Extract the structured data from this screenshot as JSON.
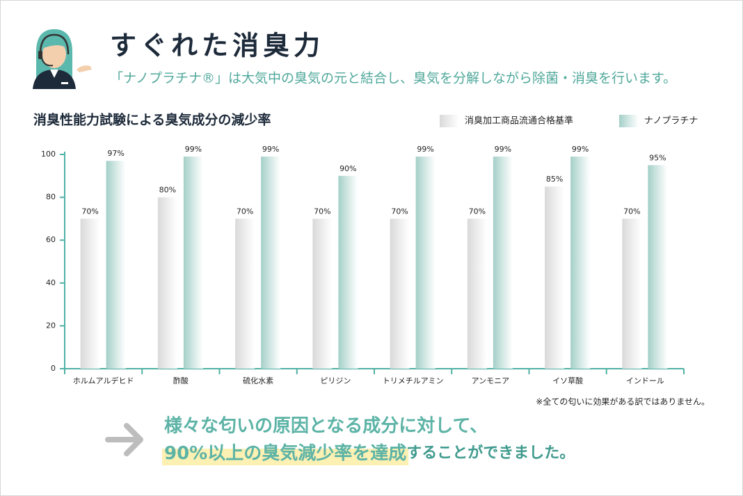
{
  "header": {
    "title": "すぐれた消臭力",
    "subtitle": "「ナノプラチナ®」は大気中の臭気の元と結合し、臭気を分解しながら除菌・消臭を行います。"
  },
  "chart_data": {
    "type": "bar",
    "title": "消臭性能力試験による臭気成分の減少率",
    "categories": [
      "ホルムアルデヒド",
      "酢酸",
      "硫化水素",
      "ピリジン",
      "トリメチルアミン",
      "アンモニア",
      "イソ草酸",
      "インドール"
    ],
    "series": [
      {
        "name": "消臭加工商品流通合格基準",
        "color": "#d9d9d9",
        "values": [
          70,
          80,
          70,
          70,
          70,
          70,
          85,
          70
        ],
        "value_labels": [
          "70%",
          "80%",
          "70%",
          "70%",
          "70%",
          "70%",
          "85%",
          "70%"
        ]
      },
      {
        "name": "ナノプラチナ",
        "color": "#a3cfc7",
        "values": [
          97,
          99,
          99,
          90,
          99,
          99,
          99,
          95
        ],
        "value_labels": [
          "97%",
          "99%",
          "99%",
          "90%",
          "99%",
          "99%",
          "99%",
          "95%"
        ]
      }
    ],
    "ylim": [
      0,
      100
    ],
    "yticks": [
      0,
      20,
      40,
      60,
      80,
      100
    ],
    "grid": false,
    "legend": "top-right",
    "note": "※全ての匂いに効果がある訳ではありません。"
  },
  "conclusion": {
    "line1": "様々な匂いの原因となる成分に対して、",
    "highlight": "90%以上の臭気減少率を達成",
    "rest": "することができました。"
  }
}
